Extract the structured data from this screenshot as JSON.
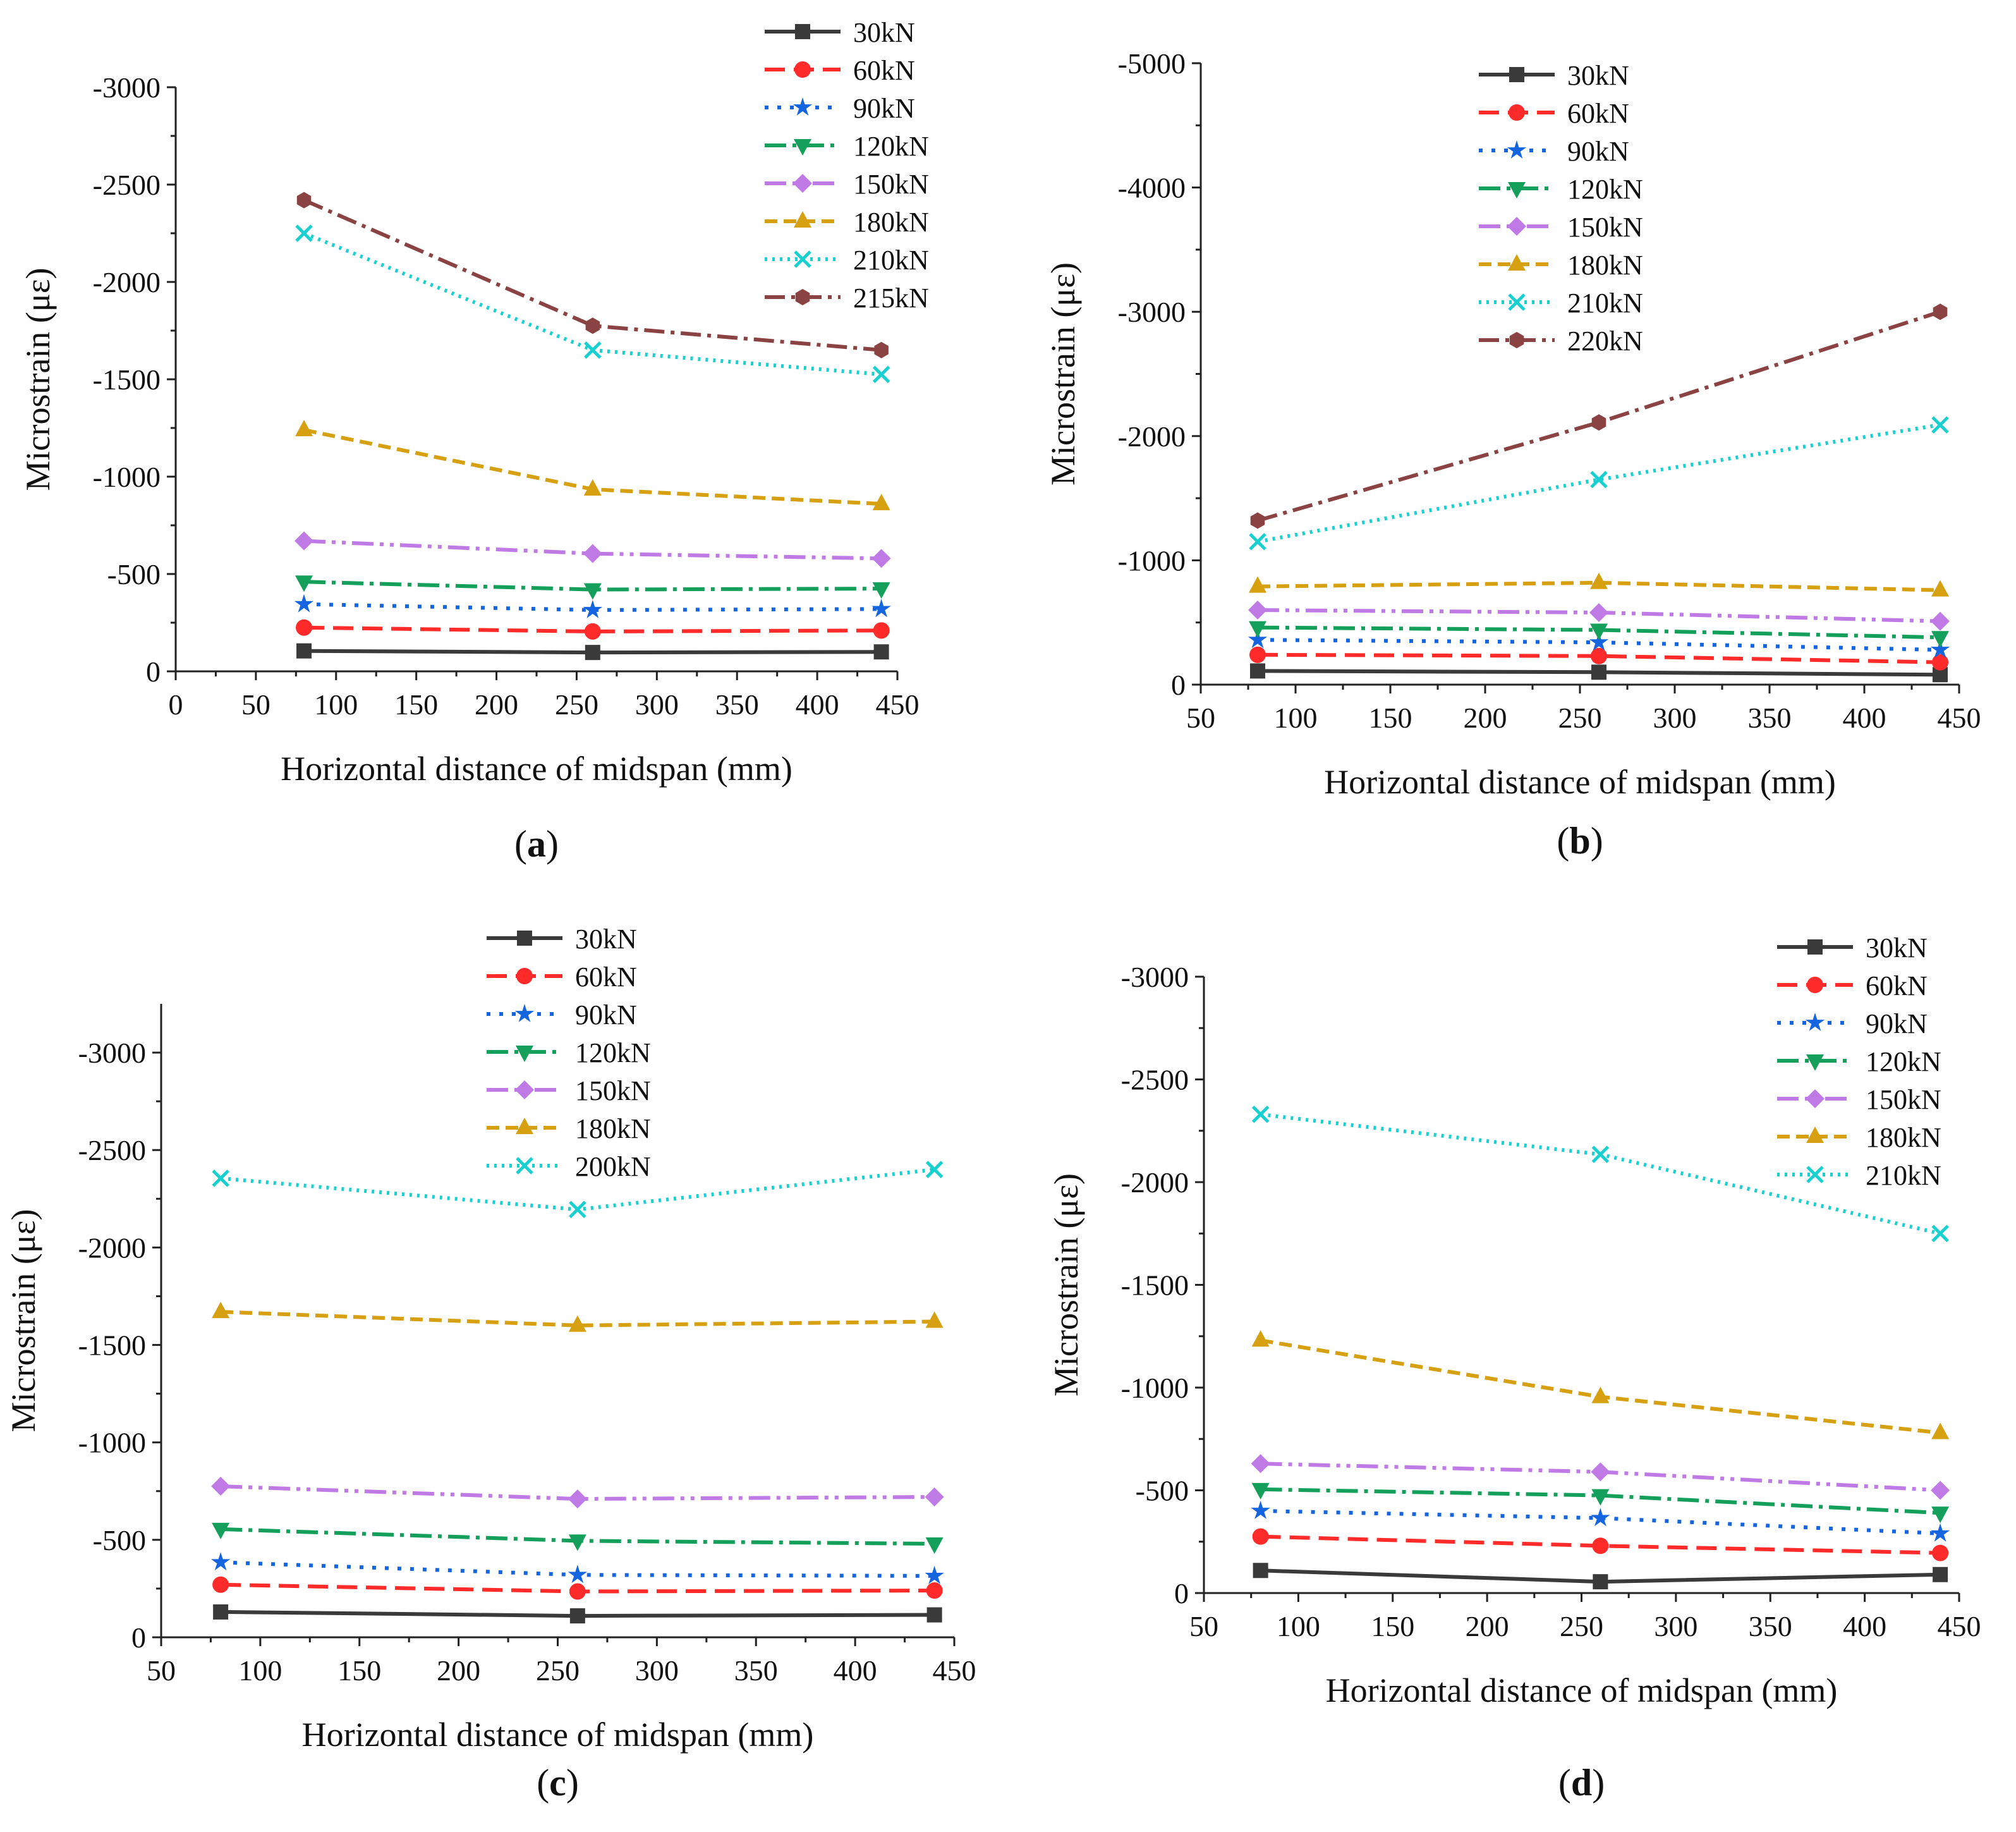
{
  "series_styles": [
    {
      "color": "#3a3a3a",
      "marker": "square",
      "dash": "none"
    },
    {
      "color": "#ff2a2a",
      "marker": "circle",
      "dash": "32 14"
    },
    {
      "color": "#1565e0",
      "marker": "star",
      "dash": "6 14"
    },
    {
      "color": "#14a05a",
      "marker": "tri-down",
      "dash": "34 10 6 10"
    },
    {
      "color": "#c07ae6",
      "marker": "diamond",
      "dash": "34 10 6 10 6 10"
    },
    {
      "color": "#d7a010",
      "marker": "tri-up",
      "dash": "20 10"
    },
    {
      "color": "#18d0d0",
      "marker": "x",
      "dash": "4 8"
    },
    {
      "color": "#8b4242",
      "marker": "hexagon",
      "dash": "32 10 6 10"
    }
  ],
  "chart_data": [
    {
      "id": "a",
      "panel_label": "a",
      "type": "line",
      "xlabel": "Horizontal distance of midspan (mm)",
      "ylabel": "Microstrain (με)",
      "xlim": [
        0,
        450
      ],
      "ylim": [
        0,
        -3000
      ],
      "xticks": [
        0,
        50,
        100,
        150,
        200,
        250,
        300,
        350,
        400,
        450
      ],
      "yticks": [
        0,
        -500,
        -1000,
        -1500,
        -2000,
        -2500,
        -3000
      ],
      "x": [
        80,
        260,
        440
      ],
      "series": [
        {
          "name": "30kN",
          "values": [
            -105,
            -97,
            -100
          ]
        },
        {
          "name": "60kN",
          "values": [
            -225,
            -205,
            -210
          ]
        },
        {
          "name": "90kN",
          "values": [
            -345,
            -315,
            -320
          ]
        },
        {
          "name": "120kN",
          "values": [
            -460,
            -420,
            -425
          ]
        },
        {
          "name": "150kN",
          "values": [
            -670,
            -605,
            -580
          ]
        },
        {
          "name": "180kN",
          "values": [
            -1240,
            -935,
            -860
          ]
        },
        {
          "name": "210kN",
          "values": [
            -2250,
            -1650,
            -1525
          ]
        },
        {
          "name": "215kN",
          "values": [
            -2420,
            -1775,
            -1650
          ]
        }
      ]
    },
    {
      "id": "b",
      "panel_label": "b",
      "type": "line",
      "xlabel": "Horizontal distance of midspan (mm)",
      "ylabel": "Microstrain (με)",
      "xlim": [
        50,
        450
      ],
      "ylim": [
        0,
        -5000
      ],
      "xticks": [
        50,
        100,
        150,
        200,
        250,
        300,
        350,
        400,
        450
      ],
      "yticks": [
        0,
        -1000,
        -2000,
        -3000,
        -4000,
        -5000
      ],
      "x": [
        80,
        260,
        440
      ],
      "series": [
        {
          "name": "30kN",
          "values": [
            -110,
            -100,
            -80
          ]
        },
        {
          "name": "60kN",
          "values": [
            -240,
            -230,
            -180
          ]
        },
        {
          "name": "90kN",
          "values": [
            -360,
            -340,
            -280
          ]
        },
        {
          "name": "120kN",
          "values": [
            -460,
            -440,
            -380
          ]
        },
        {
          "name": "150kN",
          "values": [
            -600,
            -580,
            -510
          ]
        },
        {
          "name": "180kN",
          "values": [
            -790,
            -820,
            -760
          ]
        },
        {
          "name": "210kN",
          "values": [
            -1150,
            -1650,
            -2090
          ]
        },
        {
          "name": "220kN",
          "values": [
            -1320,
            -2110,
            -3000
          ]
        }
      ]
    },
    {
      "id": "c",
      "panel_label": "c",
      "type": "line",
      "xlabel": "Horizontal distance of midspan (mm)",
      "ylabel": "Microstrain (με)",
      "xlim": [
        50,
        450
      ],
      "ylim": [
        0,
        -3250
      ],
      "xticks": [
        50,
        100,
        150,
        200,
        250,
        300,
        350,
        400,
        450
      ],
      "yticks": [
        0,
        -500,
        -1000,
        -1500,
        -2000,
        -2500,
        -3000
      ],
      "x": [
        80,
        260,
        440
      ],
      "series": [
        {
          "name": "30kN",
          "values": [
            -130,
            -110,
            -115
          ]
        },
        {
          "name": "60kN",
          "values": [
            -270,
            -235,
            -240
          ]
        },
        {
          "name": "90kN",
          "values": [
            -385,
            -320,
            -315
          ]
        },
        {
          "name": "120kN",
          "values": [
            -555,
            -495,
            -480
          ]
        },
        {
          "name": "150kN",
          "values": [
            -775,
            -710,
            -720
          ]
        },
        {
          "name": "180kN",
          "values": [
            -1670,
            -1600,
            -1620
          ]
        },
        {
          "name": "200kN",
          "values": [
            -2355,
            -2195,
            -2400
          ]
        }
      ]
    },
    {
      "id": "d",
      "panel_label": "d",
      "type": "line",
      "xlabel": "Horizontal distance of midspan (mm)",
      "ylabel": "Microstrain (με)",
      "xlim": [
        50,
        450
      ],
      "ylim": [
        0,
        -3000
      ],
      "xticks": [
        50,
        100,
        150,
        200,
        250,
        300,
        350,
        400,
        450
      ],
      "yticks": [
        0,
        -500,
        -1000,
        -1500,
        -2000,
        -2500,
        -3000
      ],
      "x": [
        80,
        260,
        440
      ],
      "series": [
        {
          "name": "30kN",
          "values": [
            -110,
            -55,
            -90
          ]
        },
        {
          "name": "60kN",
          "values": [
            -275,
            -230,
            -195
          ]
        },
        {
          "name": "90kN",
          "values": [
            -400,
            -365,
            -290
          ]
        },
        {
          "name": "120kN",
          "values": [
            -505,
            -475,
            -390
          ]
        },
        {
          "name": "150kN",
          "values": [
            -630,
            -590,
            -500
          ]
        },
        {
          "name": "180kN",
          "values": [
            -1230,
            -955,
            -780
          ]
        },
        {
          "name": "210kN",
          "values": [
            -2330,
            -2135,
            -1750
          ]
        }
      ]
    }
  ]
}
